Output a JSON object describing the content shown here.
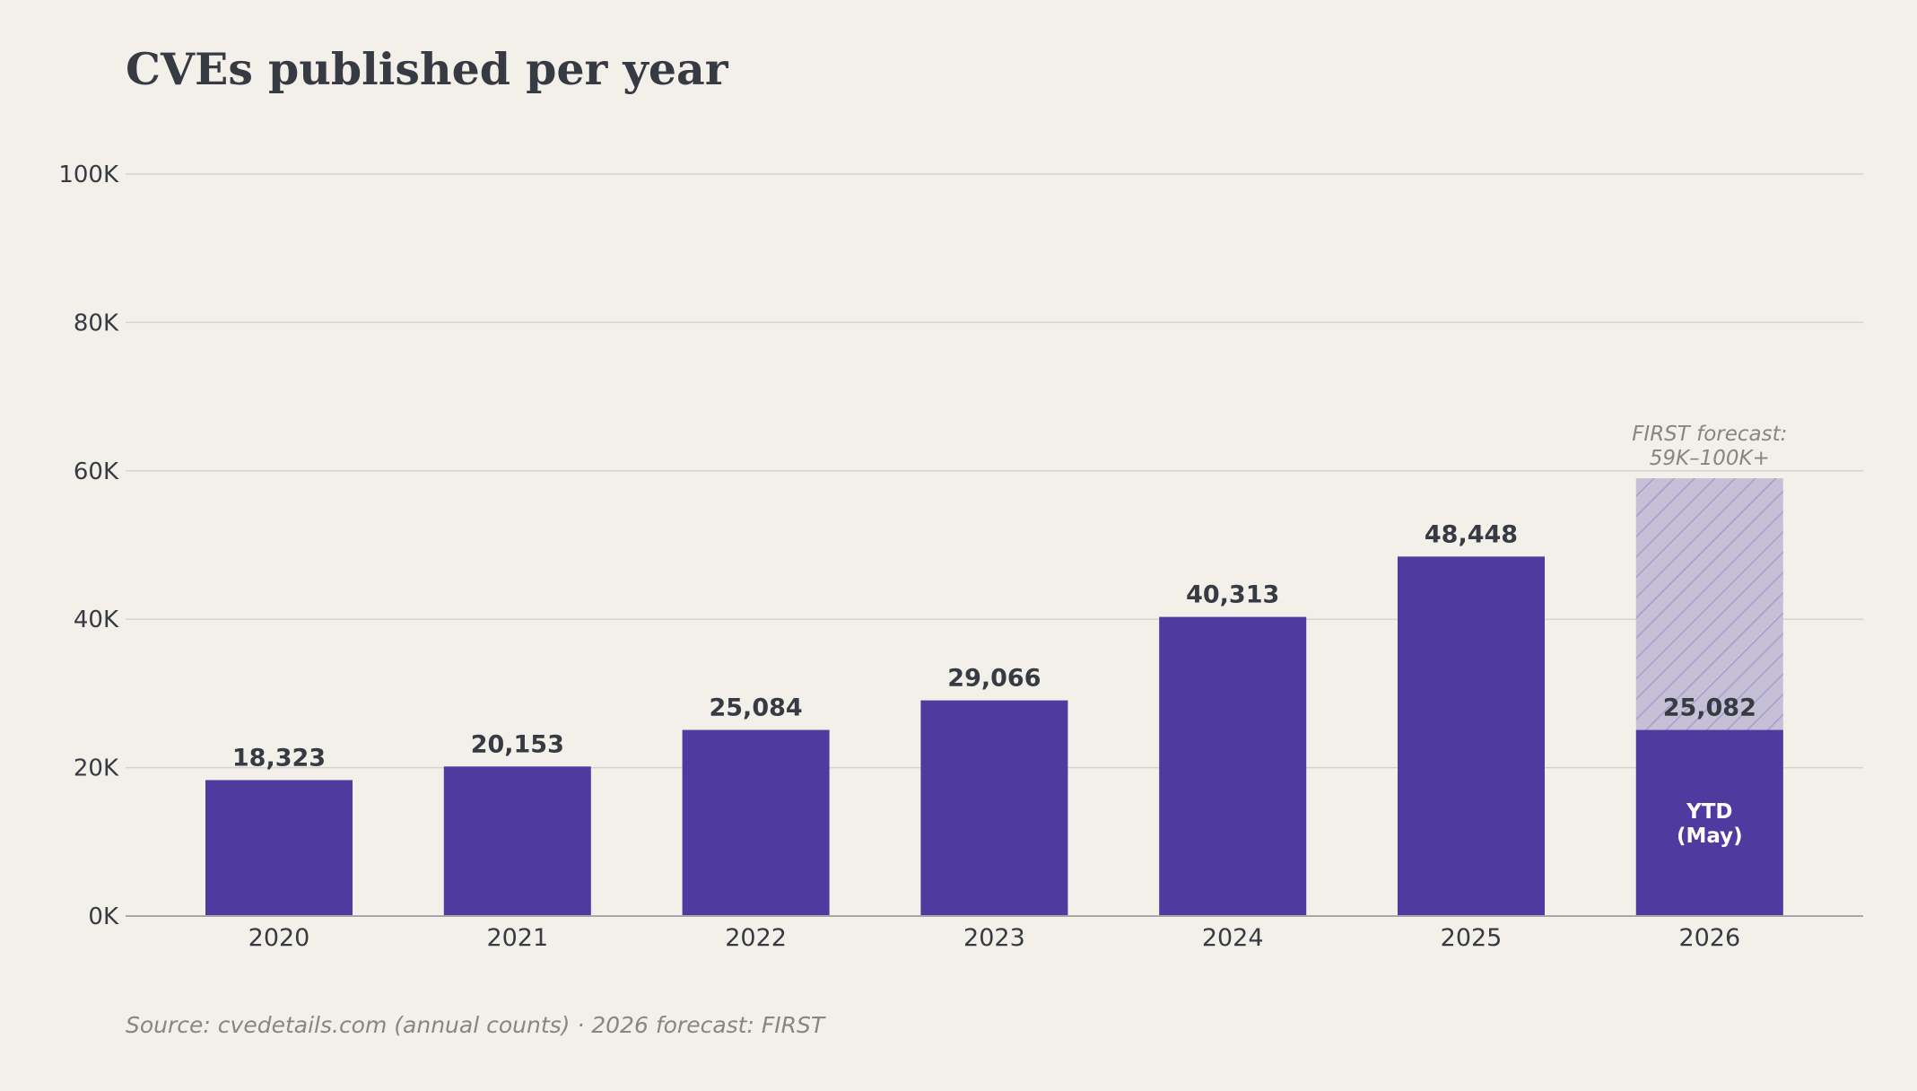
{
  "title": "CVEs published per year",
  "source": "Source: cvedetails.com (annual counts) · 2026 forecast: FIRST",
  "colors": {
    "background": "#f3f0ea",
    "bar": "#4f3a9f",
    "forecast_fill": "#c6c0d6",
    "forecast_hatch": "#a89cd0",
    "grid": "#d6d3cd",
    "axis": "#a8a8a8",
    "text": "#363a42",
    "muted": "#868686"
  },
  "chart_data": {
    "type": "bar",
    "categories": [
      "2020",
      "2021",
      "2022",
      "2023",
      "2024",
      "2025",
      "2026"
    ],
    "values": [
      18323,
      20153,
      25084,
      29066,
      40313,
      48448,
      25082
    ],
    "value_labels": [
      "18,323",
      "20,153",
      "25,084",
      "29,066",
      "40,313",
      "48,448",
      "25,082"
    ],
    "ylim": [
      0,
      100000
    ],
    "yticks": [
      0,
      20000,
      40000,
      60000,
      80000,
      100000
    ],
    "ytick_labels": [
      "0K",
      "20K",
      "40K",
      "60K",
      "80K",
      "100K"
    ],
    "grid": true,
    "forecast": {
      "category": "2026",
      "low": 59000,
      "high": 100000,
      "label_lines": [
        "FIRST forecast:",
        "59K–100K+"
      ]
    },
    "inside_label": {
      "category": "2026",
      "lines": [
        "YTD",
        "(May)"
      ]
    }
  }
}
